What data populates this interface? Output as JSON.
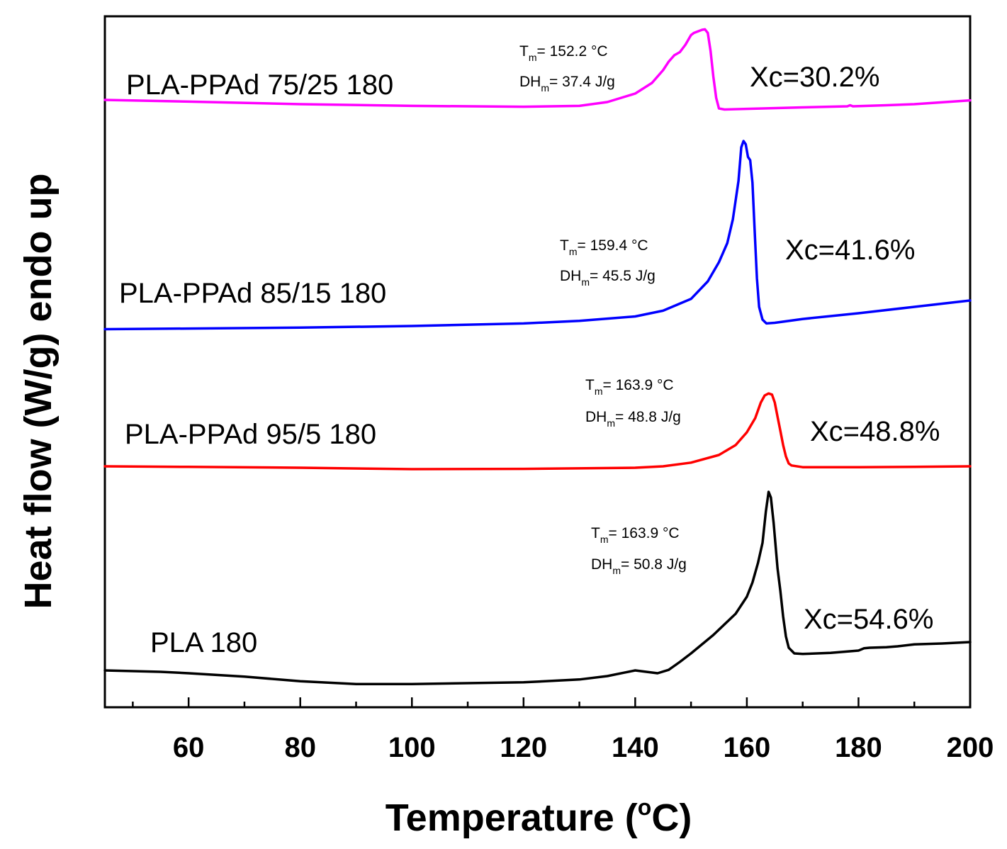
{
  "chart_data": {
    "type": "line",
    "title": "",
    "xlabel": "Temperature (°C)",
    "xlabel_parts": {
      "main": "Temperature (",
      "degree": "o",
      "unit": "C)"
    },
    "ylabel": "Heat flow (W/g) endo up",
    "xlim": [
      45,
      200
    ],
    "xticks": [
      60,
      80,
      100,
      120,
      140,
      160,
      180,
      200
    ],
    "yticks_visible": false,
    "grid": false,
    "legend": "none",
    "series": [
      {
        "name": "PLA-PPAd 75/25 180",
        "color": "#ff00ff",
        "xc": "Xc=30.2%",
        "tm_value": "= 152.2 °C",
        "dhm_value": "= 37.4 J/g",
        "x": [
          45,
          60,
          80,
          100,
          120,
          130,
          135,
          140,
          143,
          145,
          146,
          147,
          148,
          149,
          150,
          150.5,
          151,
          151.5,
          152,
          152.5,
          153,
          153.5,
          154,
          154.5,
          155,
          156,
          160,
          170,
          178,
          178.5,
          179,
          185,
          190,
          200
        ],
        "y": [
          0.3,
          0.22,
          0.1,
          0.02,
          -0.02,
          0.02,
          0.2,
          0.6,
          1.1,
          1.7,
          2.1,
          2.4,
          2.55,
          2.9,
          3.35,
          3.45,
          3.5,
          3.55,
          3.6,
          3.62,
          3.45,
          2.6,
          1.4,
          0.4,
          -0.1,
          -0.15,
          -0.12,
          -0.05,
          0.0,
          0.05,
          0.0,
          0.05,
          0.1,
          0.28
        ]
      },
      {
        "name": "PLA-PPAd 85/15 180",
        "color": "#0000ff",
        "xc": "Xc=41.6%",
        "tm_value": "= 159.4 °C",
        "dhm_value": "= 45.5 J/g",
        "x": [
          45,
          60,
          80,
          100,
          120,
          130,
          140,
          145,
          150,
          153,
          155,
          156.5,
          157.5,
          158.5,
          159,
          159.4,
          159.8,
          160.2,
          160.6,
          161,
          161.4,
          161.8,
          162.2,
          162.8,
          163.5,
          165,
          170,
          180,
          190,
          200
        ],
        "y": [
          -0.1,
          -0.08,
          -0.05,
          0.0,
          0.08,
          0.16,
          0.3,
          0.48,
          0.85,
          1.4,
          2.0,
          2.6,
          3.35,
          4.55,
          5.6,
          5.8,
          5.7,
          5.3,
          5.2,
          4.5,
          3.0,
          1.5,
          0.6,
          0.2,
          0.08,
          0.1,
          0.22,
          0.4,
          0.6,
          0.8
        ]
      },
      {
        "name": "PLA-PPAd 95/5 180",
        "color": "#ff0000",
        "xc": "Xc=48.8%",
        "tm_value": "= 163.9 °C",
        "dhm_value": "= 48.8 J/g",
        "x": [
          45,
          60,
          80,
          100,
          120,
          140,
          145,
          150,
          155,
          158,
          160,
          161.5,
          162.5,
          163.2,
          163.9,
          164.5,
          165,
          165.5,
          166,
          166.5,
          167,
          167.5,
          168,
          170,
          180,
          190,
          200
        ],
        "y": [
          0.05,
          0.03,
          0.0,
          -0.05,
          -0.04,
          0.0,
          0.05,
          0.18,
          0.45,
          0.8,
          1.25,
          1.75,
          2.3,
          2.55,
          2.62,
          2.58,
          2.3,
          1.8,
          1.3,
          0.8,
          0.4,
          0.15,
          0.08,
          0.02,
          0.02,
          0.03,
          0.05
        ]
      },
      {
        "name": "PLA 180",
        "color": "#000000",
        "xc": "Xc=54.6%",
        "tm_value": "= 163.9 °C",
        "dhm_value": "= 50.8 J/g",
        "x": [
          45,
          55,
          60,
          70,
          80,
          90,
          100,
          120,
          130,
          135,
          138,
          140,
          142,
          144,
          146,
          148,
          150,
          154,
          158,
          160,
          161,
          162,
          162.8,
          163.4,
          163.9,
          164.3,
          164.8,
          165.5,
          166,
          166.5,
          167,
          167.5,
          168.5,
          170,
          175,
          180,
          181,
          182,
          185,
          187,
          190,
          195,
          200
        ],
        "y": [
          0.6,
          0.55,
          0.5,
          0.38,
          0.22,
          0.12,
          0.12,
          0.18,
          0.28,
          0.4,
          0.52,
          0.6,
          0.55,
          0.5,
          0.62,
          0.9,
          1.2,
          1.85,
          2.6,
          3.2,
          3.7,
          4.4,
          5.1,
          6.2,
          6.9,
          6.7,
          5.8,
          4.2,
          3.4,
          2.5,
          1.8,
          1.4,
          1.2,
          1.18,
          1.22,
          1.3,
          1.38,
          1.4,
          1.42,
          1.45,
          1.52,
          1.55,
          1.6
        ]
      }
    ]
  }
}
